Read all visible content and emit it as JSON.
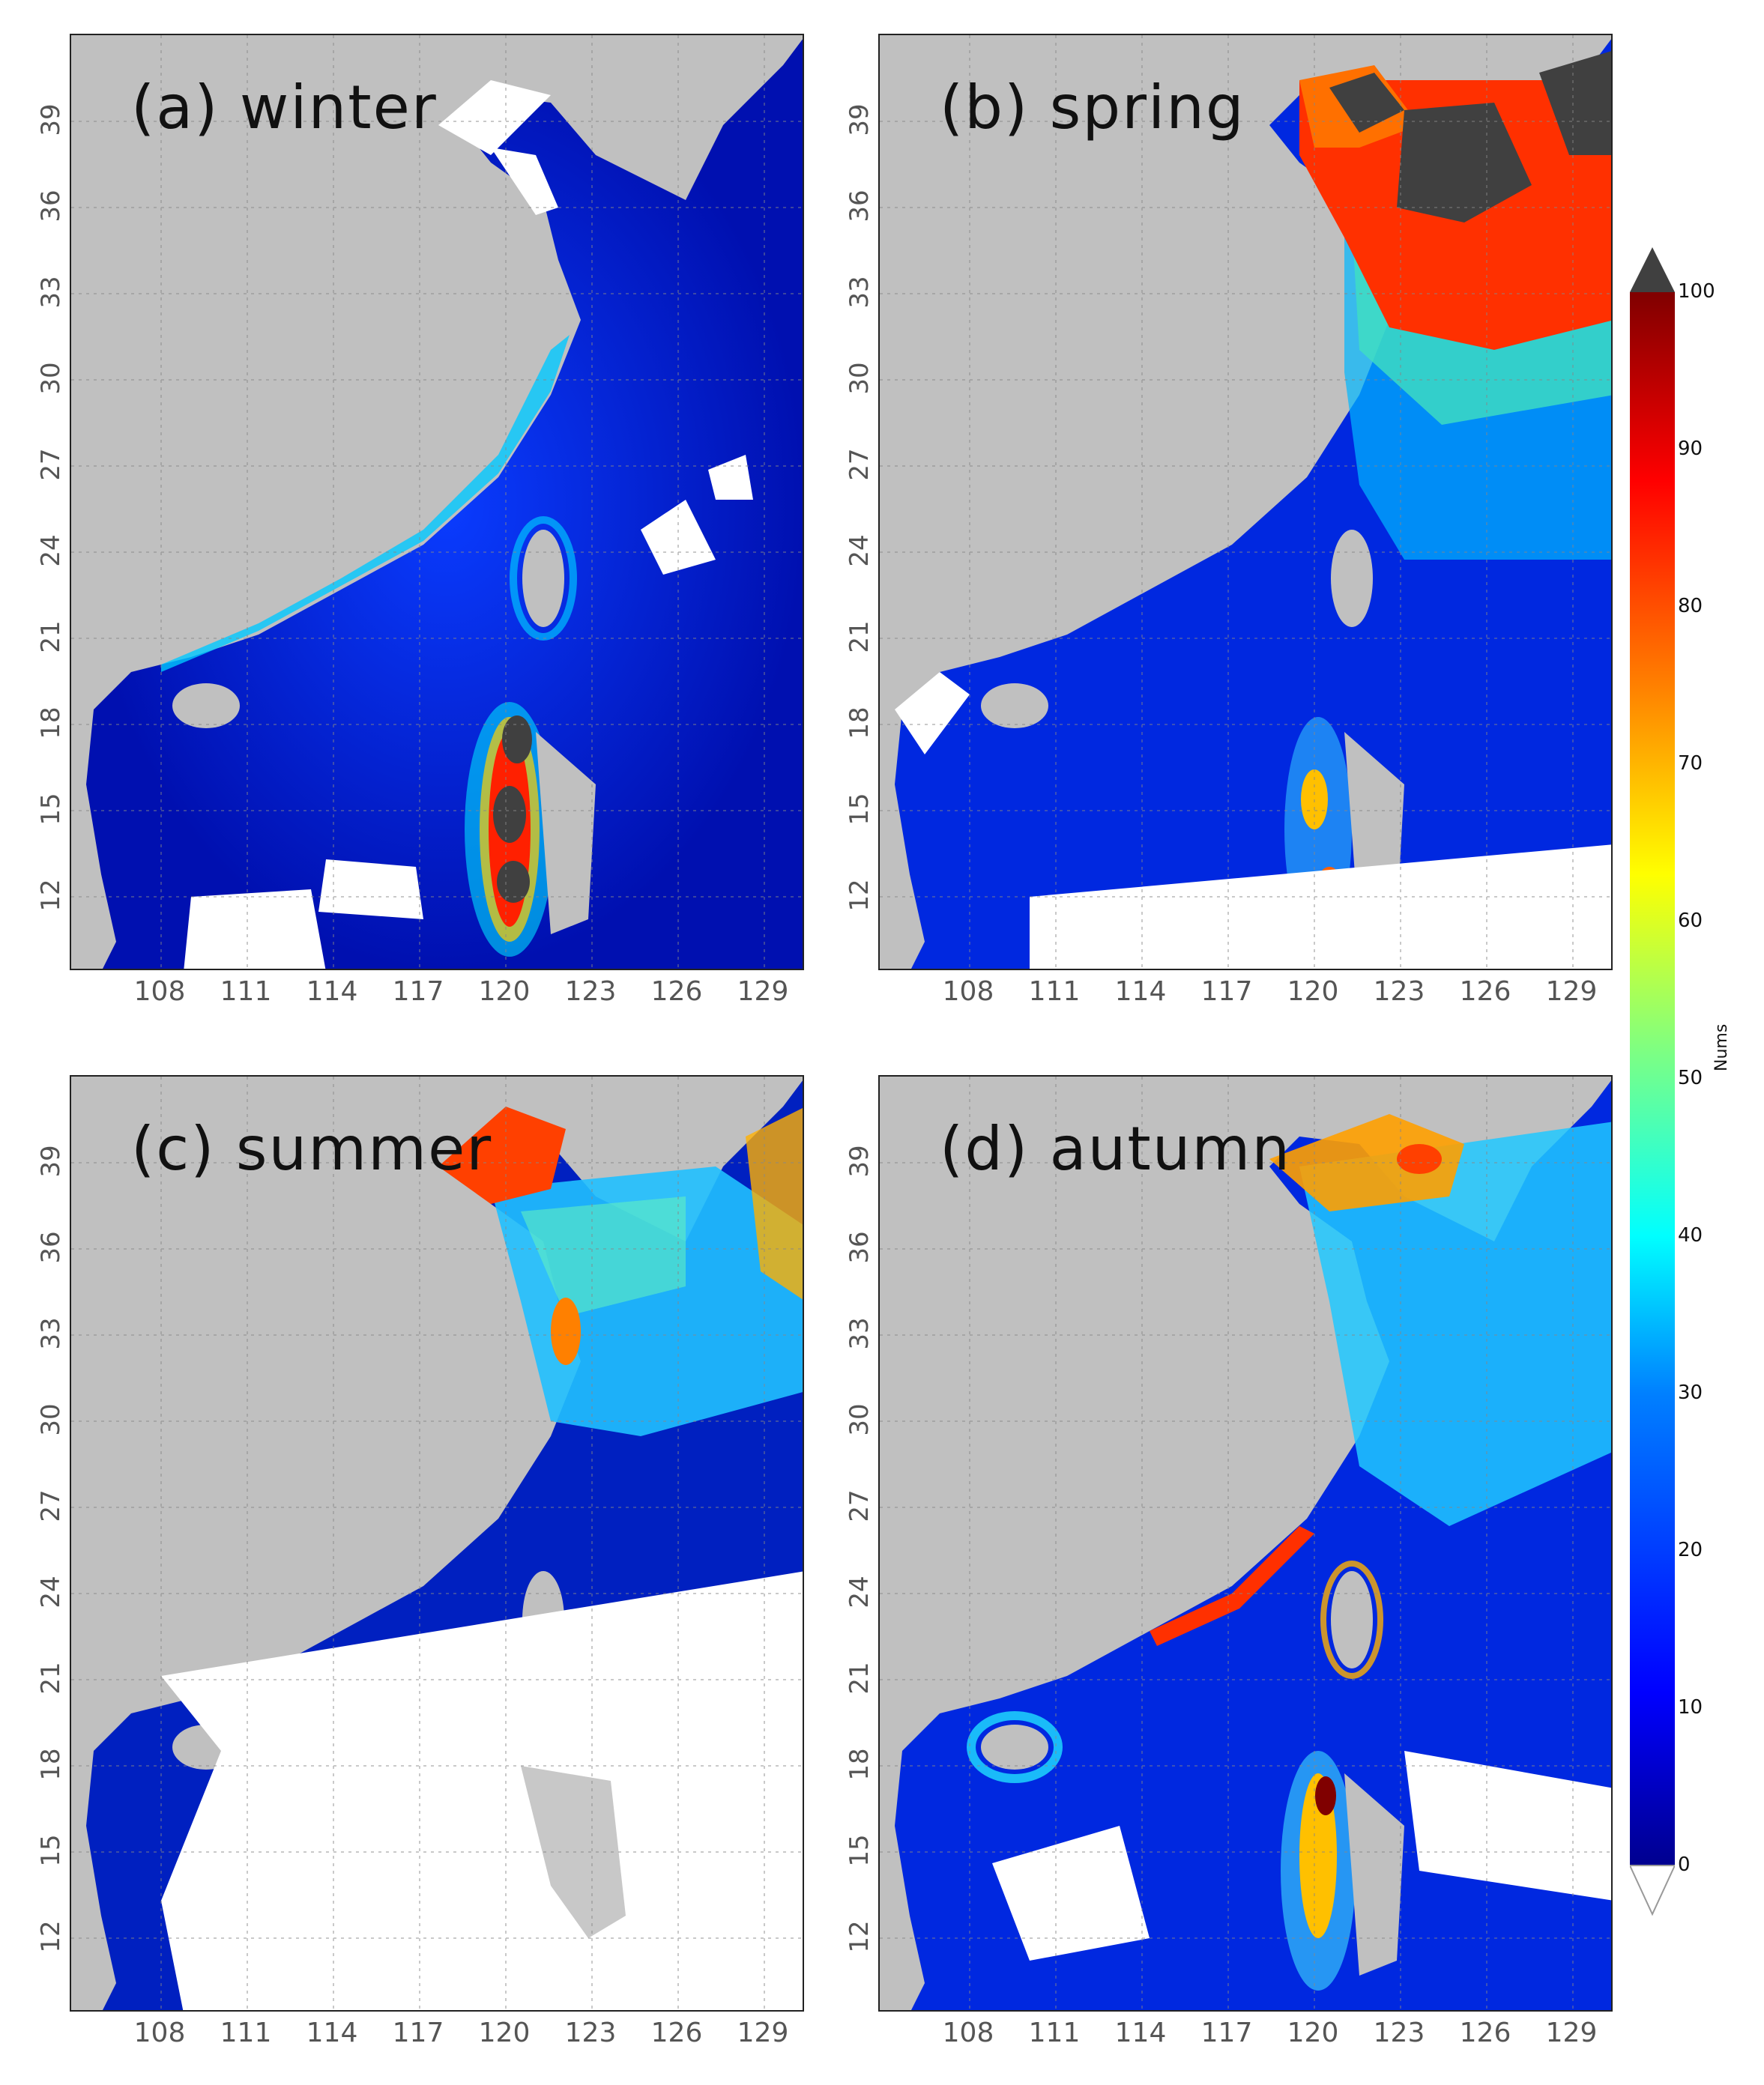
{
  "panels": [
    {
      "id": "a",
      "title": "(a)  winter"
    },
    {
      "id": "b",
      "title": "(b)  spring"
    },
    {
      "id": "c",
      "title": "(c)  summer"
    },
    {
      "id": "d",
      "title": "(d)  autumn"
    }
  ],
  "lat_ticks": [
    "39",
    "36",
    "33",
    "30",
    "27",
    "24",
    "21",
    "18",
    "15",
    "12"
  ],
  "lon_ticks": [
    "108",
    "111",
    "114",
    "117",
    "120",
    "123",
    "126",
    "129"
  ],
  "colorbar": {
    "label": "Nums",
    "ticks": [
      "100",
      "90",
      "80",
      "70",
      "60",
      "50",
      "40",
      "30",
      "20",
      "10",
      "0"
    ],
    "colors": [
      "#00008f",
      "#0000ff",
      "#0080ff",
      "#00ffff",
      "#80ff80",
      "#ffff00",
      "#ff8000",
      "#ff0000",
      "#800000"
    ],
    "over_color": "#404040",
    "under_color": "#ffffff"
  },
  "colors": {
    "land": "#c0c0c0",
    "no_data": "#ffffff",
    "exceed": "#404040"
  }
}
